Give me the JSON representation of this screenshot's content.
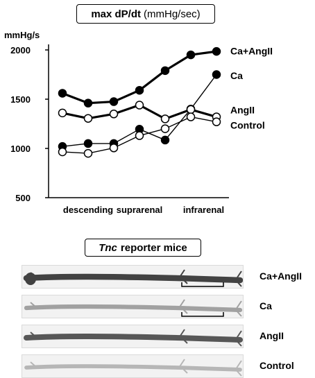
{
  "title": {
    "main": "max dP/dt",
    "unit": "(mmHg/sec)"
  },
  "chart_data": {
    "type": "line",
    "ylabel": "mmHg/s",
    "ylim": [
      500,
      2000
    ],
    "yticks": [
      "2000",
      "1500",
      "1000",
      "500"
    ],
    "x": [
      0,
      1,
      2,
      3,
      4,
      5,
      6
    ],
    "xtick_labels": [
      {
        "x": 1,
        "label": "descending"
      },
      {
        "x": 3,
        "label": "suprarenal"
      },
      {
        "x": 5.5,
        "label": "infrarenal"
      }
    ],
    "series": [
      {
        "name": "Ca+AngII",
        "values": [
          1560,
          1460,
          1475,
          1590,
          1790,
          1950,
          1985
        ],
        "marker": "filled",
        "line": "thick"
      },
      {
        "name": "Ca",
        "values": [
          1020,
          1050,
          1050,
          1195,
          1085,
          1400,
          1750
        ],
        "marker": "filled",
        "line": "thin"
      },
      {
        "name": "AngII",
        "values": [
          1360,
          1305,
          1350,
          1440,
          1300,
          1395,
          1320
        ],
        "marker": "open",
        "line": "thick"
      },
      {
        "name": "Control",
        "values": [
          965,
          950,
          1005,
          1130,
          1200,
          1320,
          1270
        ],
        "marker": "open",
        "line": "thin"
      }
    ],
    "grid": false,
    "legend": "right, inline at line ends"
  },
  "reporter": {
    "title_italic": "Tnc",
    "title_rest": "reporter mice",
    "strips": [
      {
        "label": "Ca+AngII",
        "intensity": 0.9,
        "bracket": true
      },
      {
        "label": "Ca",
        "intensity": 0.45,
        "bracket": true
      },
      {
        "label": "AngII",
        "intensity": 0.8,
        "bracket": false
      },
      {
        "label": "Control",
        "intensity": 0.35,
        "bracket": false
      }
    ]
  }
}
